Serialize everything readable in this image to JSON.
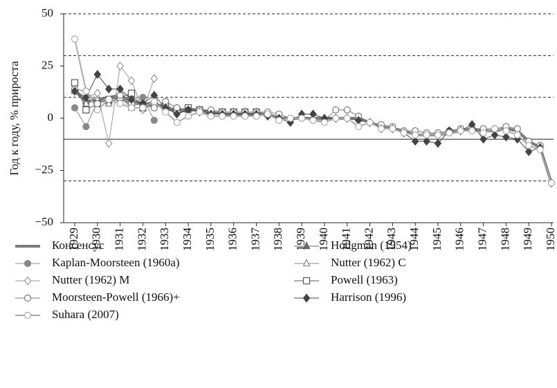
{
  "chart_data": {
    "type": "line",
    "ylabel": "Год к году, % прироста",
    "x": [
      1929,
      1929.5,
      1930,
      1930.5,
      1931,
      1931.5,
      1932,
      1932.5,
      1933,
      1933.5,
      1934,
      1934.5,
      1935,
      1935.5,
      1936,
      1936.5,
      1937,
      1937.5,
      1938,
      1938.5,
      1939,
      1939.5,
      1940,
      1940.5,
      1941,
      1941.5,
      1942,
      1942.5,
      1943,
      1943.5,
      1944,
      1944.5,
      1945,
      1945.5,
      1946,
      1946.5,
      1947,
      1947.5,
      1948,
      1948.5,
      1949,
      1949.5,
      1950
    ],
    "xlim": [
      1929,
      1950
    ],
    "xticks": [
      1929,
      1930,
      1931,
      1932,
      1933,
      1934,
      1935,
      1936,
      1937,
      1938,
      1939,
      1940,
      1941,
      1942,
      1943,
      1944,
      1945,
      1946,
      1947,
      1948,
      1949,
      1950
    ],
    "ylim": [
      -50,
      50
    ],
    "yticks": [
      {
        "value": -50,
        "label": "−50"
      },
      {
        "value": -25,
        "label": "−25"
      },
      0,
      25,
      50
    ],
    "grid_lines": [
      50,
      30,
      10,
      -30
    ],
    "baseline": -10,
    "series": [
      {
        "name": "Консенсус",
        "color": "#7a7a7a",
        "marker": "none",
        "width": 4,
        "values": [
          13,
          8,
          9,
          10,
          11,
          8,
          7,
          7,
          5,
          3,
          4,
          4,
          3,
          2,
          2,
          2,
          2,
          2,
          0,
          0,
          0,
          0,
          0,
          0,
          0,
          0,
          -2,
          -4,
          -5,
          -6,
          -8,
          -8,
          -8,
          -7,
          -6,
          -5,
          -6,
          -6,
          -5,
          -6,
          -11,
          -14,
          -31
        ]
      },
      {
        "name": "Hodgman (1954)",
        "color": "#666666",
        "marker": "triangle-filled",
        "width": 1,
        "values": [
          13,
          8,
          9,
          8,
          10,
          6,
          7,
          8,
          5,
          4,
          4,
          4,
          3,
          3,
          3,
          3,
          3,
          2,
          null,
          null,
          null,
          null,
          null,
          null,
          null,
          null,
          null,
          null,
          null,
          null,
          null,
          null,
          null,
          null,
          null,
          null,
          null,
          null,
          null,
          null,
          null,
          null,
          null
        ]
      },
      {
        "name": "Kaplan-Moorsteen (1960a)",
        "color": "#888888",
        "marker": "circle-filled",
        "width": 1,
        "values": [
          5,
          -4,
          8,
          9,
          11,
          6,
          10,
          -1,
          null,
          null,
          null,
          null,
          null,
          null,
          null,
          null,
          null,
          null,
          null,
          null,
          null,
          null,
          null,
          null,
          null,
          null,
          null,
          null,
          null,
          null,
          null,
          null,
          null,
          null,
          null,
          null,
          null,
          null,
          null,
          null,
          null,
          null,
          null
        ]
      },
      {
        "name": "Nutter (1962) C",
        "color": "#888888",
        "marker": "triangle-open",
        "width": 1,
        "values": [
          13,
          7,
          9,
          7,
          10,
          5,
          5,
          6,
          5,
          null,
          null,
          null,
          null,
          null,
          null,
          null,
          null,
          null,
          null,
          null,
          null,
          null,
          null,
          null,
          null,
          null,
          null,
          null,
          null,
          null,
          null,
          null,
          null,
          null,
          null,
          null,
          null,
          null,
          null,
          null,
          null,
          null,
          null
        ]
      },
      {
        "name": "Nutter (1962) M",
        "color": "#999999",
        "marker": "diamond-open",
        "width": 1,
        "values": [
          13,
          10,
          12,
          -12,
          25,
          18,
          4,
          19,
          null,
          null,
          null,
          null,
          null,
          null,
          null,
          null,
          null,
          null,
          null,
          null,
          null,
          null,
          null,
          null,
          null,
          null,
          null,
          null,
          null,
          null,
          null,
          null,
          null,
          null,
          null,
          null,
          null,
          null,
          null,
          null,
          null,
          null,
          null
        ]
      },
      {
        "name": "Powell (1963)",
        "color": "#555555",
        "marker": "square-open",
        "width": 1,
        "values": [
          17,
          4,
          7,
          9,
          10,
          12,
          5,
          7,
          6,
          4,
          5,
          4,
          2,
          3,
          3,
          3,
          3,
          null,
          null,
          null,
          null,
          null,
          null,
          null,
          null,
          null,
          null,
          null,
          null,
          null,
          null,
          null,
          null,
          null,
          null,
          null,
          null,
          null,
          null,
          null,
          null,
          null,
          null
        ]
      },
      {
        "name": "Moorsteen-Powell (1966)+",
        "color": "#777777",
        "marker": "circle-open",
        "width": 1,
        "values": [
          14,
          13,
          7,
          9,
          11,
          7,
          7,
          5,
          8,
          5,
          4,
          4,
          4,
          3,
          3,
          3,
          3,
          3,
          2,
          0,
          0,
          -1,
          -1,
          4,
          4,
          1,
          -2,
          -3,
          -4,
          -6,
          -6,
          -7,
          -7,
          -6,
          -5,
          -5,
          -5,
          -5,
          -4,
          -5,
          -11,
          -13,
          -31
        ]
      },
      {
        "name": "Harrison (1996)",
        "color": "#444444",
        "marker": "diamond-filled",
        "width": 1,
        "values": [
          13,
          10,
          21,
          14,
          14,
          9,
          7,
          11,
          5,
          2,
          4,
          3,
          2,
          2,
          2,
          2,
          2,
          1,
          0,
          -2,
          2,
          2,
          0,
          0,
          0,
          -1,
          -2,
          -5,
          -5,
          -7,
          -11,
          -11,
          -12,
          -6,
          -6,
          -3,
          -10,
          -8,
          -9,
          -10,
          -16,
          -14,
          -31
        ]
      },
      {
        "name": "Suhara (2007)",
        "color": "#aaaaaa",
        "marker": "circle-open",
        "width": 2,
        "values": [
          38,
          13,
          4,
          9,
          7,
          5,
          5,
          8,
          3,
          -2,
          1,
          3,
          1,
          1,
          1,
          1,
          1,
          2,
          -1,
          0,
          0,
          -1,
          -2,
          0,
          0,
          -4,
          -2,
          -5,
          -5,
          -7,
          -8,
          -8,
          -8,
          -7,
          -6,
          -6,
          -7,
          -5,
          -6,
          -8,
          -13,
          -15,
          -31
        ]
      }
    ]
  }
}
